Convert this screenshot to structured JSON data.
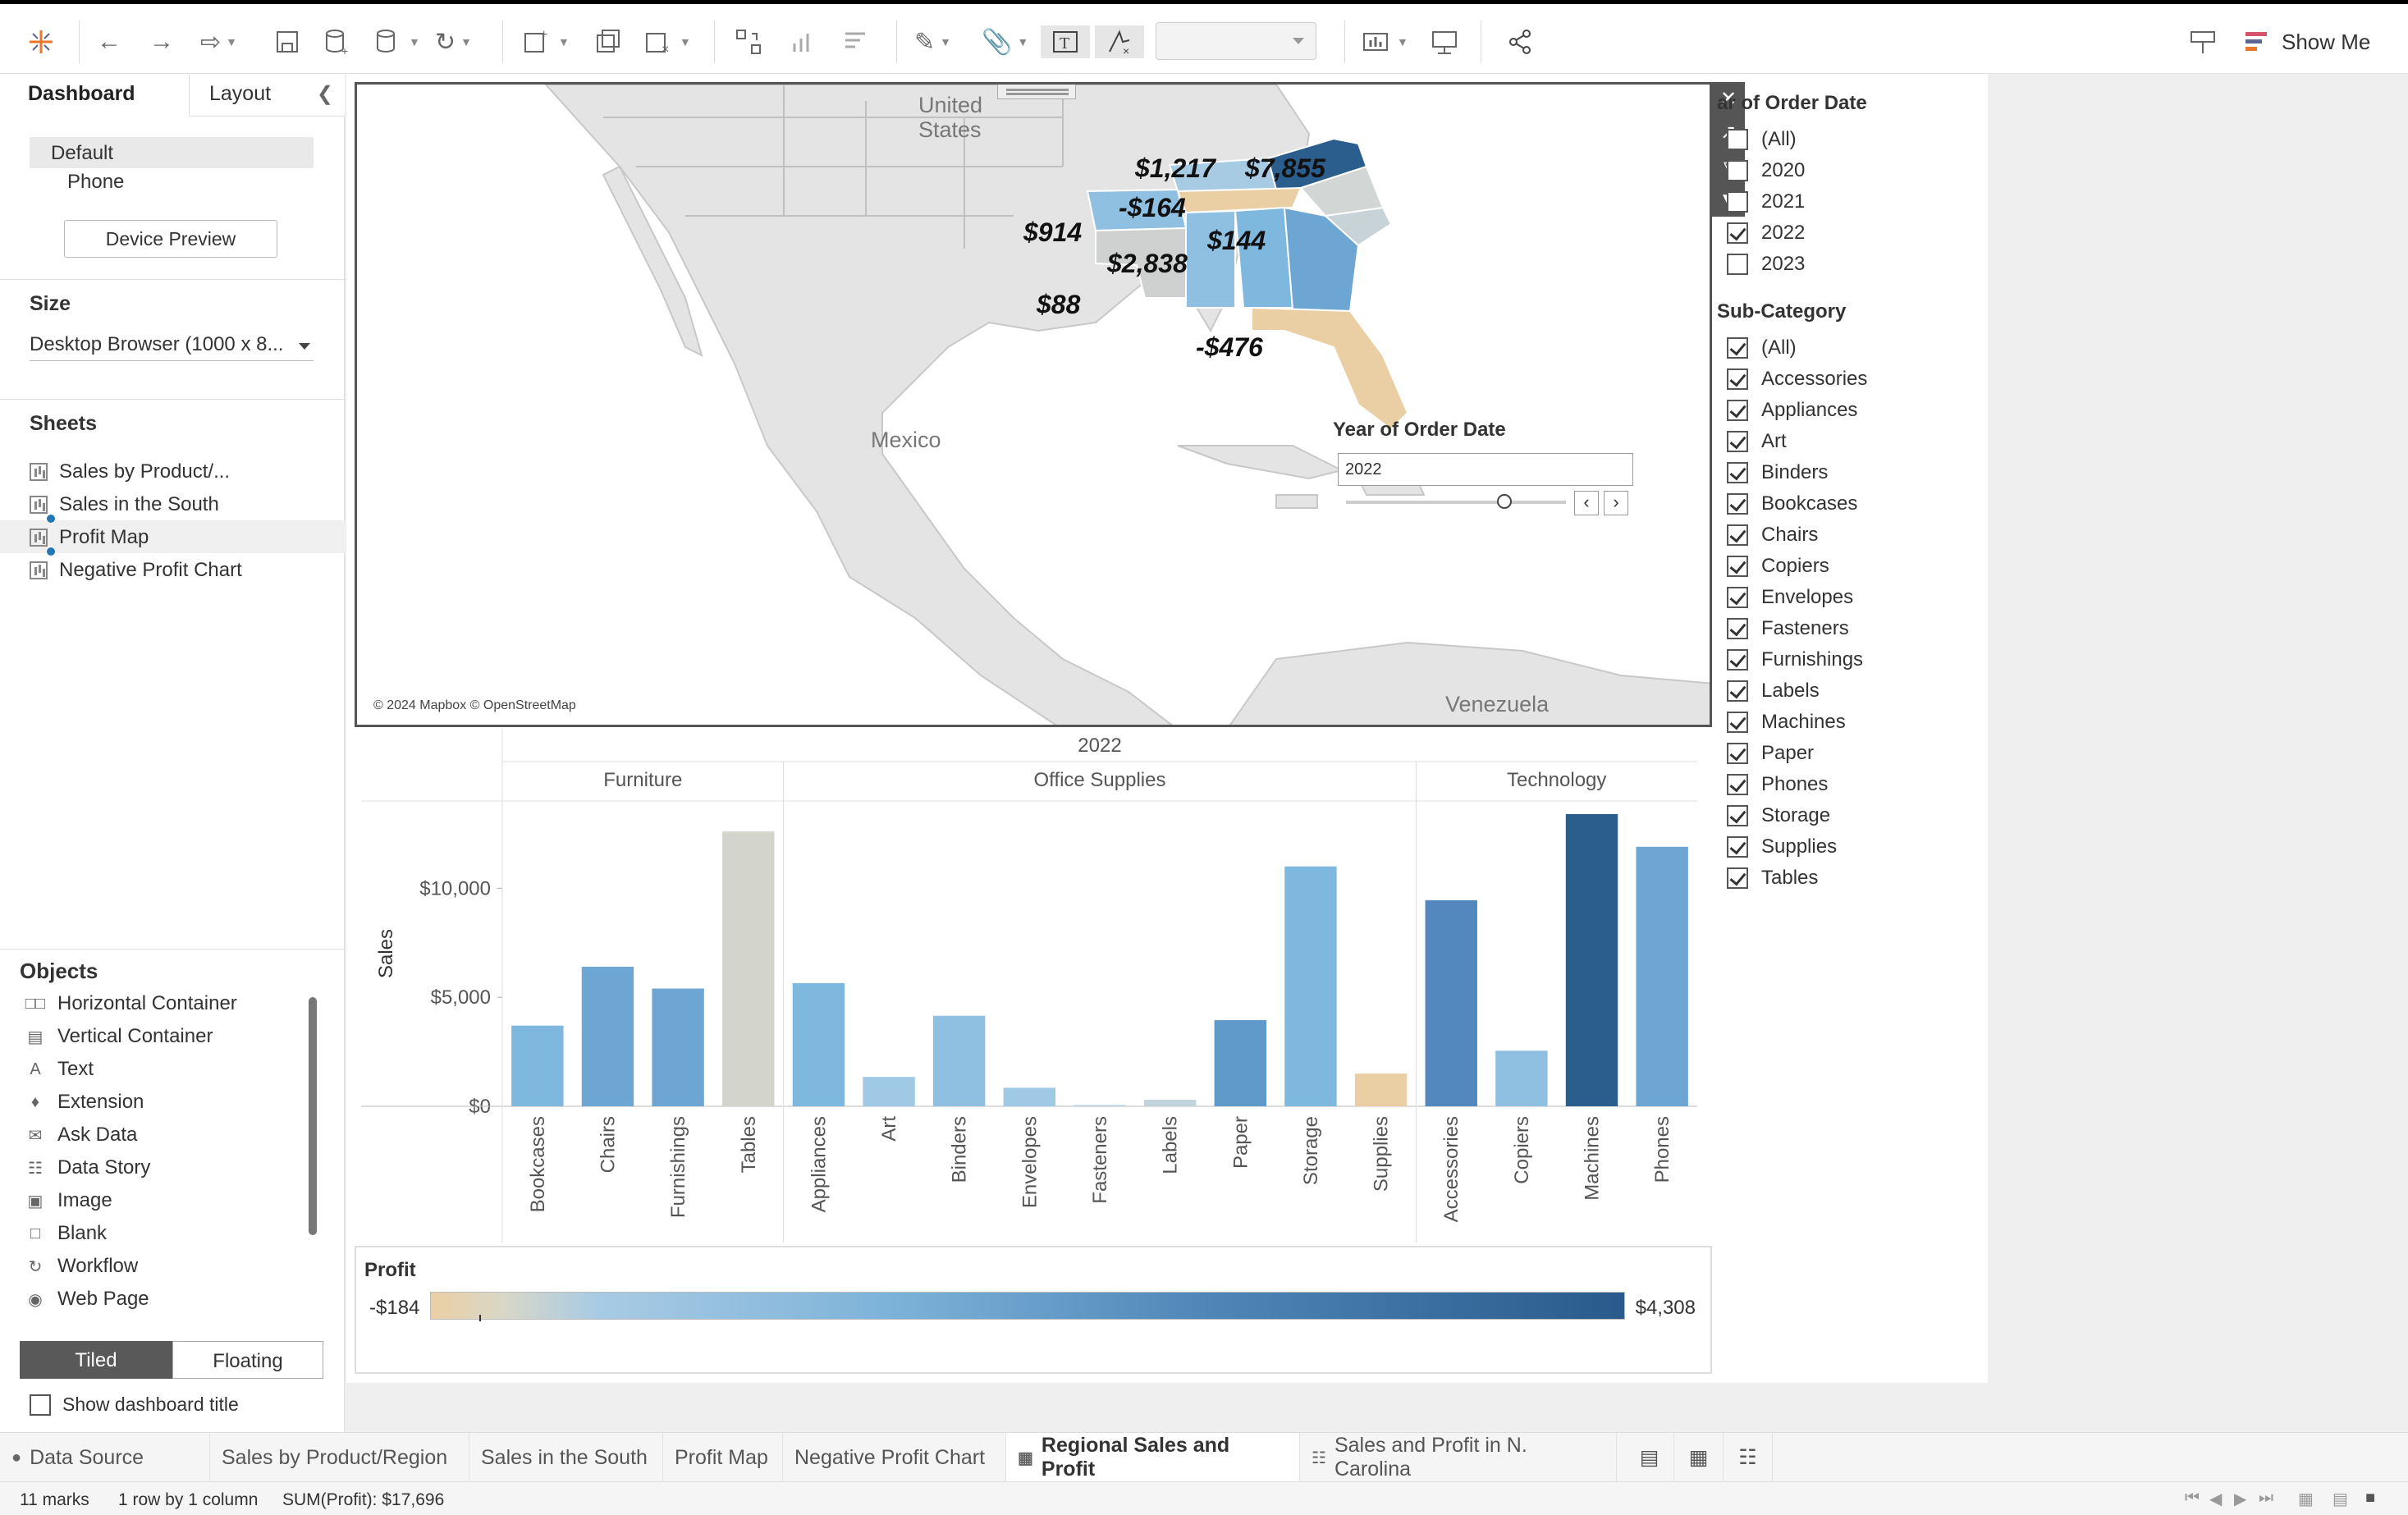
{
  "toolbar": {
    "show_me": "Show Me"
  },
  "left_panel": {
    "tab_dashboard": "Dashboard",
    "tab_layout": "Layout",
    "devices": [
      "Default",
      "Phone"
    ],
    "device_preview": "Device Preview",
    "size_title": "Size",
    "size_value": "Desktop Browser (1000 x 8...",
    "sheets_title": "Sheets",
    "sheets": [
      "Sales by Product/...",
      "Sales in the South",
      "Profit Map",
      "Negative Profit Chart"
    ],
    "objects_title": "Objects",
    "objects": [
      "Horizontal Container",
      "Vertical Container",
      "Text",
      "Extension",
      "Ask Data",
      "Data Story",
      "Image",
      "Blank",
      "Workflow",
      "Web Page"
    ],
    "tiled": "Tiled",
    "floating": "Floating",
    "show_title": "Show dashboard title"
  },
  "map": {
    "labels": {
      "us": "United",
      "us2": "States",
      "mexico": "Mexico",
      "venezuela": "Venezuela"
    },
    "copyright": "© 2024 Mapbox © OpenStreetMap",
    "state_profits": [
      {
        "state": "Kentucky",
        "label": "$1,217"
      },
      {
        "state": "Virginia",
        "label": "$7,855"
      },
      {
        "state": "Tennessee",
        "label": "-$164"
      },
      {
        "state": "Arkansas",
        "label": "$914"
      },
      {
        "state": "Georgia",
        "label": "$144"
      },
      {
        "state": "Alabama",
        "label": "$2,838"
      },
      {
        "state": "Louisiana",
        "label": "$88"
      },
      {
        "state": "Florida",
        "label": "-$476"
      }
    ],
    "year_filter_title": "Year of Order Date",
    "year_value": "2022"
  },
  "filters": {
    "year_title": "ar of Order Date",
    "years": [
      {
        "label": "(All)",
        "checked": false
      },
      {
        "label": "2020",
        "checked": false
      },
      {
        "label": "2021",
        "checked": false
      },
      {
        "label": "2022",
        "checked": true
      },
      {
        "label": "2023",
        "checked": false
      }
    ],
    "subcat_title": "Sub-Category",
    "subcats": [
      "(All)",
      "Accessories",
      "Appliances",
      "Art",
      "Binders",
      "Bookcases",
      "Chairs",
      "Copiers",
      "Envelopes",
      "Fasteners",
      "Furnishings",
      "Labels",
      "Machines",
      "Paper",
      "Phones",
      "Storage",
      "Supplies",
      "Tables"
    ]
  },
  "chart_data": {
    "type": "bar",
    "title": "2022",
    "ylabel": "Sales",
    "ylim": [
      0,
      14000
    ],
    "yticks": [
      "$0",
      "$5,000",
      "$10,000"
    ],
    "groups": [
      {
        "name": "Furniture",
        "categories": [
          "Bookcases",
          "Chairs",
          "Furnishings",
          "Tables"
        ],
        "values": [
          3700,
          6400,
          5400,
          12600
        ],
        "colors": [
          "#7fb8de",
          "#6ea6d3",
          "#6ea6d3",
          "#d3d4cc"
        ]
      },
      {
        "name": "Office Supplies",
        "categories": [
          "Appliances",
          "Art",
          "Binders",
          "Envelopes",
          "Fasteners",
          "Labels",
          "Paper",
          "Storage",
          "Supplies"
        ],
        "values": [
          5650,
          1350,
          4150,
          850,
          60,
          300,
          3950,
          11000,
          1500
        ],
        "colors": [
          "#7fb8de",
          "#a0c9e6",
          "#8fc0e2",
          "#a0c9e6",
          "#b8d3e6",
          "#c2d3dc",
          "#5f9acb",
          "#7fb8de",
          "#ebcfa4"
        ]
      },
      {
        "name": "Technology",
        "categories": [
          "Accessories",
          "Copiers",
          "Machines",
          "Phones"
        ],
        "values": [
          9450,
          2550,
          13400,
          11900
        ],
        "colors": [
          "#5288bd",
          "#8fc0e2",
          "#2b5d8d",
          "#6ea6d3"
        ]
      }
    ]
  },
  "legend": {
    "title": "Profit",
    "min": "-$184",
    "max": "$4,308"
  },
  "sheet_tabs": [
    "Data Source",
    "Sales by Product/Region",
    "Sales in the South",
    "Profit Map",
    "Negative Profit Chart",
    "Regional Sales and Profit",
    "Sales and Profit in N. Carolina"
  ],
  "status": {
    "marks": "11 marks",
    "rows": "1 row by 1 column",
    "sum": "SUM(Profit): $17,696"
  }
}
